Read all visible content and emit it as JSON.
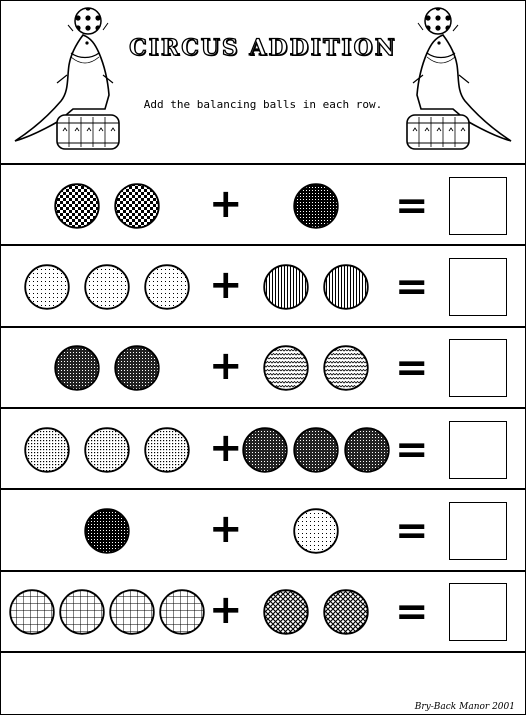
{
  "worksheet": {
    "title": "CIRCUS ADDITION",
    "instruction": "Add the balancing balls in each row.",
    "credit": "Bry-Back Manor 2001",
    "plus_symbol": "+",
    "equals_symbol": "=",
    "rows": [
      {
        "left_count": 2,
        "left_pattern": "checker",
        "right_count": 1,
        "right_pattern": "dark"
      },
      {
        "left_count": 3,
        "left_pattern": "light-dots",
        "right_count": 2,
        "right_pattern": "vertical-stripes"
      },
      {
        "left_count": 2,
        "left_pattern": "dark-dots",
        "right_count": 2,
        "right_pattern": "waves"
      },
      {
        "left_count": 3,
        "left_pattern": "medium-dots",
        "right_count": 3,
        "right_pattern": "dark-dots"
      },
      {
        "left_count": 1,
        "left_pattern": "dark",
        "right_count": 1,
        "right_pattern": "light-dots"
      },
      {
        "left_count": 4,
        "left_pattern": "grid",
        "right_count": 2,
        "right_pattern": "crosshatch"
      }
    ]
  },
  "icons": {
    "seal": "seal-balancing-ball-icon"
  }
}
